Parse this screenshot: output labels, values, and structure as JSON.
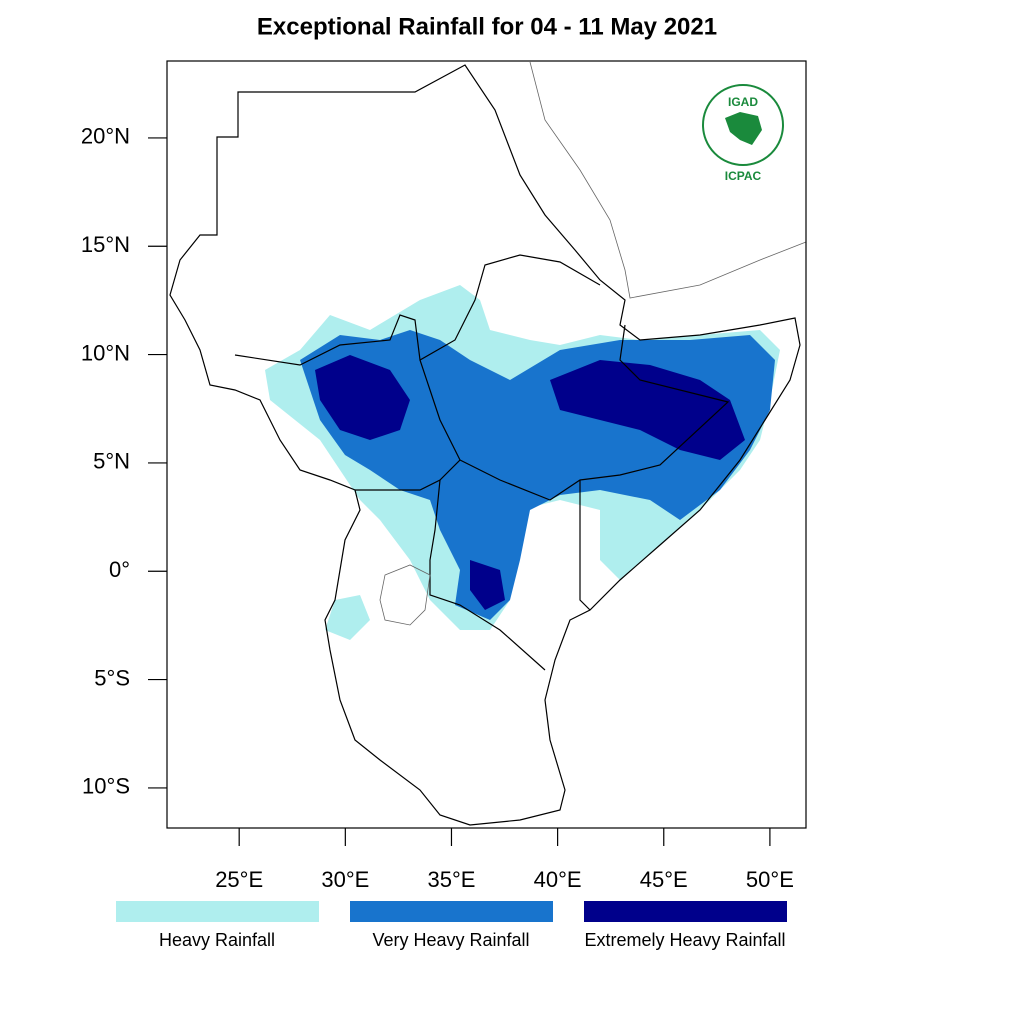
{
  "map": {
    "title": "Exceptional Rainfall for 04 - 11 May 2021",
    "xlim": [
      21.6,
      51.7
    ],
    "ylim": [
      -11.85,
      23.55
    ],
    "xticks": [
      {
        "value": 25,
        "label": "25°E"
      },
      {
        "value": 30,
        "label": "30°E"
      },
      {
        "value": 35,
        "label": "35°E"
      },
      {
        "value": 40,
        "label": "40°E"
      },
      {
        "value": 45,
        "label": "45°E"
      },
      {
        "value": 50,
        "label": "50°E"
      }
    ],
    "yticks": [
      {
        "value": 20,
        "label": "20°N"
      },
      {
        "value": 15,
        "label": "15°N"
      },
      {
        "value": 10,
        "label": "10°N"
      },
      {
        "value": 5,
        "label": "5°N"
      },
      {
        "value": 0,
        "label": "0°"
      },
      {
        "value": -5,
        "label": "5°S"
      },
      {
        "value": -10,
        "label": "10°S"
      }
    ],
    "legend": [
      {
        "name": "Heavy Rainfall",
        "color": "#afeeee"
      },
      {
        "name": "Very Heavy Rainfall",
        "color": "#1874cd"
      },
      {
        "name": "Extremely Heavy Rainfall",
        "color": "#00008b"
      }
    ],
    "logo": {
      "name": "IGAD",
      "org": "ICPAC"
    }
  }
}
